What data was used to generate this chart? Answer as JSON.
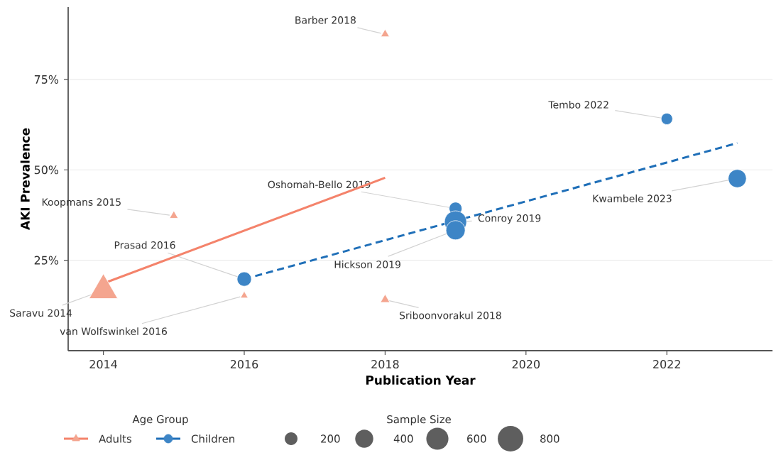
{
  "chart_data": {
    "type": "bubble",
    "xlabel": "Publication Year",
    "ylabel": "AKI Prevalence",
    "legend_title": "Age Group",
    "xlim": [
      2013.5,
      2023.5
    ],
    "xticks": [
      2014,
      2016,
      2018,
      2020,
      2022
    ],
    "ylim": [
      0,
      95
    ],
    "yticks": [
      {
        "value": 25,
        "label": "25%"
      },
      {
        "value": 50,
        "label": "50%"
      },
      {
        "value": 75,
        "label": "75%"
      }
    ],
    "grid": "y",
    "legend": "bottom",
    "size_legend": [
      {
        "value": 200,
        "label": "200"
      },
      {
        "value": 400,
        "label": "400"
      },
      {
        "value": 600,
        "label": "600"
      },
      {
        "value": 800,
        "label": "800"
      }
    ],
    "series": [
      {
        "name": "Adults",
        "marker": "triangle",
        "color": "#f4a58f",
        "x": [
          2014,
          2015,
          2016,
          2018,
          2018
        ],
        "values": [
          16.7,
          37.3,
          15.2,
          87.5,
          14.1
        ],
        "sizes": [
          550,
          50,
          40,
          50,
          60
        ]
      },
      {
        "type": "line",
        "line_style": "solid",
        "color": "#f4836b",
        "x": [
          2014,
          2018
        ],
        "values": [
          18.6,
          47.8
        ]
      },
      {
        "name": "Children",
        "marker": "circle",
        "color": "#3d85c6",
        "x": [
          2016,
          2019,
          2019,
          2019,
          2022,
          2023
        ],
        "values": [
          19.8,
          39.3,
          35.6,
          33.3,
          64.1,
          47.6
        ],
        "sizes": [
          250,
          200,
          600,
          450,
          160,
          400
        ]
      },
      {
        "type": "line",
        "line_style": "dashed",
        "color": "#1f6fb8",
        "x": [
          2016,
          2023
        ],
        "values": [
          19.8,
          57.4
        ]
      }
    ],
    "annotations": [
      {
        "text": "Saravu 2014",
        "x": 2014,
        "y": 16.7
      },
      {
        "text": "Koopmans 2015",
        "x": 2015,
        "y": 37.3
      },
      {
        "text": "Prasad 2016",
        "x": 2016,
        "y": 19.8
      },
      {
        "text": "van Wolfswinkel 2016",
        "x": 2016,
        "y": 15.2
      },
      {
        "text": "Barber 2018",
        "x": 2018,
        "y": 87.5
      },
      {
        "text": "Sriboonvorakul 2018",
        "x": 2018,
        "y": 14.1
      },
      {
        "text": "Oshomah-Bello 2019",
        "x": 2019,
        "y": 39.3
      },
      {
        "text": "Hickson 2019",
        "x": 2019,
        "y": 33.3
      },
      {
        "text": "Conroy 2019",
        "x": 2019,
        "y": 35.6
      },
      {
        "text": "Tembo 2022",
        "x": 2022,
        "y": 64.1
      },
      {
        "text": "Kwambele 2023",
        "x": 2023,
        "y": 47.6
      },
      "Sample Size"
    ]
  }
}
